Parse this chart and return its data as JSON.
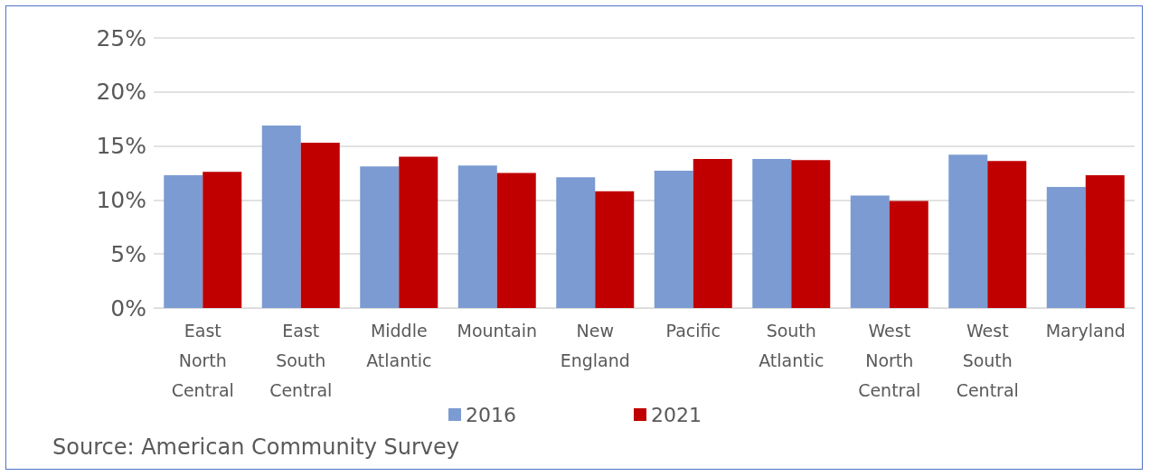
{
  "chart_data": {
    "type": "bar",
    "categories": [
      "East North Central",
      "East South Central",
      "Middle Atlantic",
      "Mountain",
      "New England",
      "Pacific",
      "South Atlantic",
      "West North Central",
      "West South Central",
      "Maryland"
    ],
    "series": [
      {
        "name": "2016",
        "color": "#7b9bd2",
        "values": [
          12.3,
          16.9,
          13.1,
          13.2,
          12.1,
          12.7,
          13.8,
          10.4,
          14.2,
          11.2
        ]
      },
      {
        "name": "2021",
        "color": "#c00000",
        "values": [
          12.6,
          15.3,
          14.0,
          12.5,
          10.8,
          13.8,
          13.7,
          9.9,
          13.6,
          12.3
        ]
      }
    ],
    "ylim": [
      0,
      25
    ],
    "yticks": [
      {
        "value": 0,
        "label": "0%"
      },
      {
        "value": 5,
        "label": "5%"
      },
      {
        "value": 10,
        "label": "10%"
      },
      {
        "value": 15,
        "label": "15%"
      },
      {
        "value": 20,
        "label": "20%"
      },
      {
        "value": 25,
        "label": "25%"
      }
    ],
    "grid": "y",
    "legend": "bottom",
    "annotations": [
      "Source: American Community Survey"
    ]
  }
}
